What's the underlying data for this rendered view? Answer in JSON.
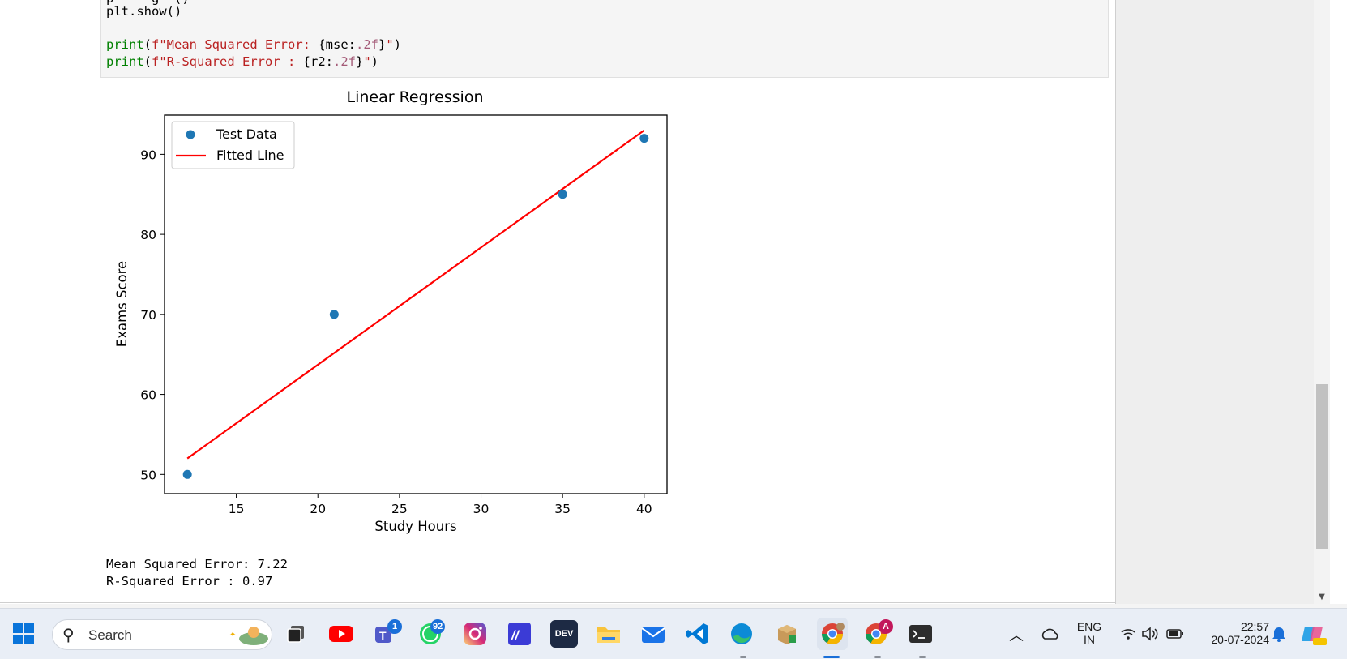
{
  "code_cell": {
    "line1": "plt.show()",
    "line2_kw": "print",
    "line2_open": "(",
    "line2_str1": "f\"Mean Squared Error: ",
    "line2_fmt": "{mse:",
    "line2_spec": ".2f",
    "line2_close_brace": "}",
    "line2_str2": "\"",
    "line2_end": ")",
    "line3_kw": "print",
    "line3_open": "(",
    "line3_str1": "f\"R-Squared Error : ",
    "line3_fmt": "{r2:",
    "line3_spec": ".2f",
    "line3_close_brace": "}",
    "line3_str2": "\"",
    "line3_end": ")"
  },
  "chart_data": {
    "type": "scatter",
    "title": "Linear Regression",
    "xlabel": "Study Hours",
    "ylabel": "Exams Score",
    "xlim": [
      10.6,
      41.4
    ],
    "ylim": [
      47.6,
      94.9
    ],
    "xticks": [
      15,
      20,
      25,
      30,
      35,
      40
    ],
    "yticks": [
      50,
      60,
      70,
      80,
      90
    ],
    "grid": false,
    "legend_position": "upper-left",
    "series": [
      {
        "name": "Test Data",
        "type": "scatter",
        "color": "#1f77b4",
        "x": [
          12,
          21,
          35,
          40
        ],
        "y": [
          50,
          70,
          85,
          92
        ]
      },
      {
        "name": "Fitted Line",
        "type": "line",
        "color": "#ff0000",
        "x": [
          12,
          40
        ],
        "y": [
          52,
          93
        ]
      }
    ]
  },
  "output": {
    "line1": "Mean Squared Error: 7.22",
    "line2": "R-Squared Error : 0.97"
  },
  "taskbar": {
    "search_label": "Search",
    "apps": [
      {
        "name": "start",
        "icon": "windows-icon"
      },
      {
        "name": "task-view",
        "icon": "task-view-icon"
      },
      {
        "name": "youtube",
        "icon": "youtube-icon"
      },
      {
        "name": "teams",
        "icon": "teams-icon",
        "badge": "1"
      },
      {
        "name": "whatsapp",
        "icon": "whatsapp-icon",
        "badge": "92"
      },
      {
        "name": "instagram",
        "icon": "instagram-icon"
      },
      {
        "name": "app-m",
        "icon": "m-app-icon"
      },
      {
        "name": "devtoys",
        "icon": "devtoys-icon",
        "label": "DEV"
      },
      {
        "name": "file-explorer",
        "icon": "folder-icon"
      },
      {
        "name": "mail",
        "icon": "mail-icon"
      },
      {
        "name": "vscode",
        "icon": "vscode-icon"
      },
      {
        "name": "edge",
        "icon": "edge-icon"
      },
      {
        "name": "package",
        "icon": "package-icon"
      },
      {
        "name": "chrome-1",
        "icon": "chrome-icon"
      },
      {
        "name": "chrome-2",
        "icon": "chrome-icon",
        "badge": "A"
      },
      {
        "name": "terminal",
        "icon": "terminal-icon"
      }
    ],
    "tray": {
      "lang_top": "ENG",
      "lang_bottom": "IN",
      "time": "22:57",
      "date": "20-07-2024"
    }
  }
}
